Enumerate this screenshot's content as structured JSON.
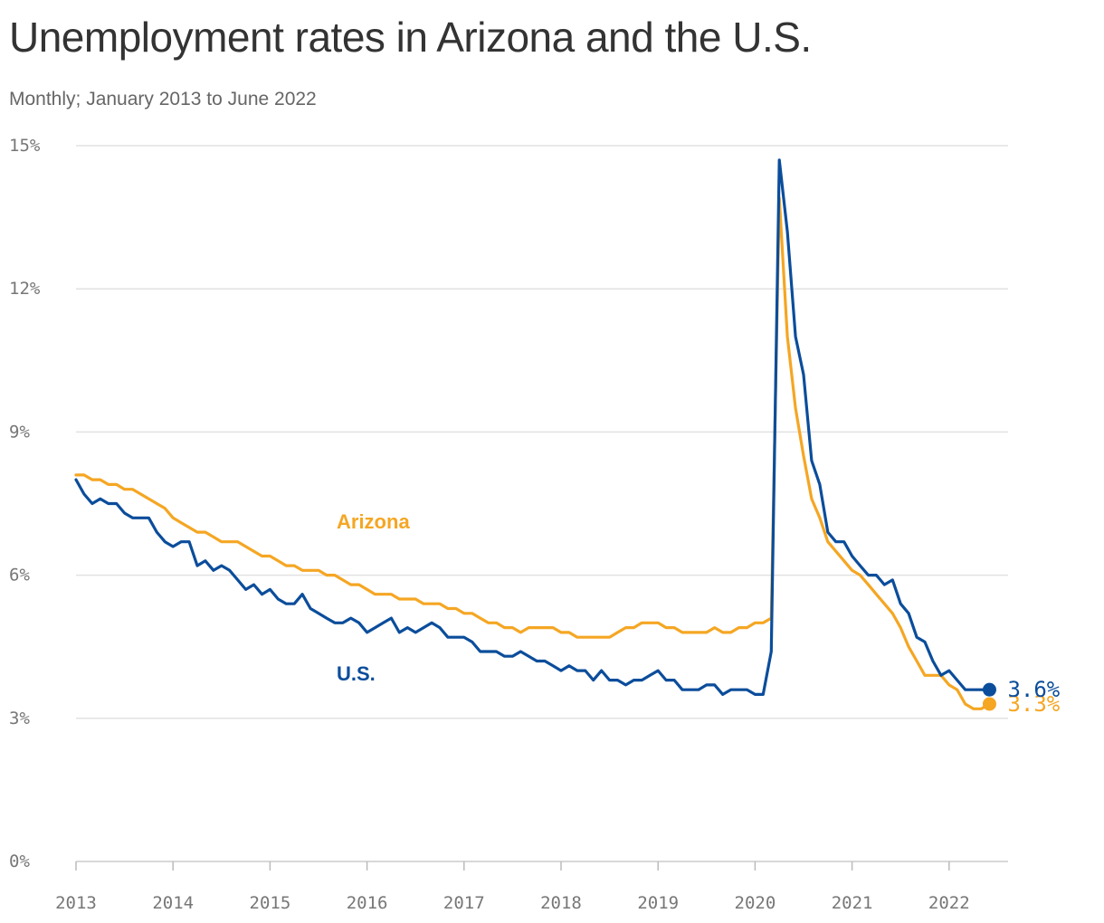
{
  "chart_data": {
    "type": "line",
    "title": "Unemployment rates in Arizona and the U.S.",
    "subtitle": "Monthly; January 2013 to June 2022",
    "xlabel": "",
    "ylabel": "",
    "x_start": "2013-01",
    "x_end": "2022-06",
    "x_ticks": [
      "2013",
      "2014",
      "2015",
      "2016",
      "2017",
      "2018",
      "2019",
      "2020",
      "2021",
      "2022"
    ],
    "y_ticks": [
      "0%",
      "3%",
      "6%",
      "9%",
      "12%",
      "15%"
    ],
    "ylim": [
      0,
      15
    ],
    "grid": true,
    "series": [
      {
        "name": "Arizona",
        "color": "#f5a623",
        "end_label": "3.3%",
        "values": [
          8.1,
          8.1,
          8.0,
          8.0,
          7.9,
          7.9,
          7.8,
          7.8,
          7.7,
          7.6,
          7.5,
          7.4,
          7.2,
          7.1,
          7.0,
          6.9,
          6.9,
          6.8,
          6.7,
          6.7,
          6.7,
          6.6,
          6.5,
          6.4,
          6.4,
          6.3,
          6.2,
          6.2,
          6.1,
          6.1,
          6.1,
          6.0,
          6.0,
          5.9,
          5.8,
          5.8,
          5.7,
          5.6,
          5.6,
          5.6,
          5.5,
          5.5,
          5.5,
          5.4,
          5.4,
          5.4,
          5.3,
          5.3,
          5.2,
          5.2,
          5.1,
          5.0,
          5.0,
          4.9,
          4.9,
          4.8,
          4.9,
          4.9,
          4.9,
          4.9,
          4.8,
          4.8,
          4.7,
          4.7,
          4.7,
          4.7,
          4.7,
          4.8,
          4.9,
          4.9,
          5.0,
          5.0,
          5.0,
          4.9,
          4.9,
          4.8,
          4.8,
          4.8,
          4.8,
          4.9,
          4.8,
          4.8,
          4.9,
          4.9,
          5.0,
          5.0,
          5.1,
          13.9,
          11.0,
          9.5,
          8.5,
          7.6,
          7.2,
          6.7,
          6.5,
          6.3,
          6.1,
          6.0,
          5.8,
          5.6,
          5.4,
          5.2,
          4.9,
          4.5,
          4.2,
          3.9,
          3.9,
          3.9,
          3.7,
          3.6,
          3.3,
          3.2,
          3.2,
          3.3
        ]
      },
      {
        "name": "U.S.",
        "color": "#0b4d9b",
        "end_label": "3.6%",
        "values": [
          8.0,
          7.7,
          7.5,
          7.6,
          7.5,
          7.5,
          7.3,
          7.2,
          7.2,
          7.2,
          6.9,
          6.7,
          6.6,
          6.7,
          6.7,
          6.2,
          6.3,
          6.1,
          6.2,
          6.1,
          5.9,
          5.7,
          5.8,
          5.6,
          5.7,
          5.5,
          5.4,
          5.4,
          5.6,
          5.3,
          5.2,
          5.1,
          5.0,
          5.0,
          5.1,
          5.0,
          4.8,
          4.9,
          5.0,
          5.1,
          4.8,
          4.9,
          4.8,
          4.9,
          5.0,
          4.9,
          4.7,
          4.7,
          4.7,
          4.6,
          4.4,
          4.4,
          4.4,
          4.3,
          4.3,
          4.4,
          4.3,
          4.2,
          4.2,
          4.1,
          4.0,
          4.1,
          4.0,
          4.0,
          3.8,
          4.0,
          3.8,
          3.8,
          3.7,
          3.8,
          3.8,
          3.9,
          4.0,
          3.8,
          3.8,
          3.6,
          3.6,
          3.6,
          3.7,
          3.7,
          3.5,
          3.6,
          3.6,
          3.6,
          3.5,
          3.5,
          4.4,
          14.7,
          13.2,
          11.0,
          10.2,
          8.4,
          7.9,
          6.9,
          6.7,
          6.7,
          6.4,
          6.2,
          6.0,
          6.0,
          5.8,
          5.9,
          5.4,
          5.2,
          4.7,
          4.6,
          4.2,
          3.9,
          4.0,
          3.8,
          3.6,
          3.6,
          3.6,
          3.6
        ]
      }
    ]
  }
}
